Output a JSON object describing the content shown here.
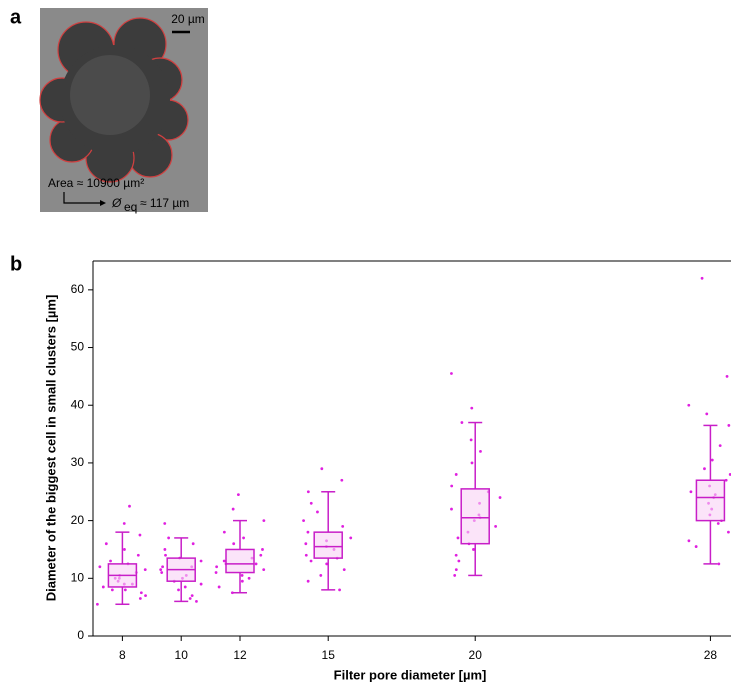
{
  "panel_a": {
    "label": "a",
    "scale_bar": "20 µm",
    "area": "Area ≈ 10900 µm²",
    "diameter_symbol": "Ø",
    "diameter_subscript": "eq",
    "diameter_value": "≈ 117 µm"
  },
  "chart_data": {
    "type": "box",
    "panel_label": "b",
    "x_label": "Filter pore diameter [µm]",
    "y_label": "Diameter of the biggest cell in small clusters  [µm]",
    "x": [
      8,
      10,
      12,
      15,
      20,
      28
    ],
    "xlim": [
      7,
      28.7
    ],
    "xticks": [
      8,
      10,
      12,
      15,
      20,
      28
    ],
    "ylim": [
      0,
      65
    ],
    "yticks": [
      0,
      10,
      20,
      30,
      40,
      50,
      60
    ],
    "color": "#e020e0",
    "box_fill": "#f9d2f5",
    "box_stroke": "#c81ec8",
    "boxes": [
      {
        "whisker_low": 5.5,
        "q1": 8.5,
        "median": 10.5,
        "q3": 12.5,
        "whisker_high": 18
      },
      {
        "whisker_low": 6,
        "q1": 9.5,
        "median": 11.5,
        "q3": 13.5,
        "whisker_high": 17
      },
      {
        "whisker_low": 7.5,
        "q1": 11,
        "median": 12.5,
        "q3": 15,
        "whisker_high": 20
      },
      {
        "whisker_low": 8,
        "q1": 13.5,
        "median": 15.5,
        "q3": 18,
        "whisker_high": 25
      },
      {
        "whisker_low": 10.5,
        "q1": 16,
        "median": 20.5,
        "q3": 25.5,
        "whisker_high": 37
      },
      {
        "whisker_low": 12.5,
        "q1": 20,
        "median": 24,
        "q3": 27,
        "whisker_high": 36.5
      }
    ],
    "points": [
      [
        5.5,
        6.5,
        7,
        7.5,
        8,
        8,
        8.5,
        9,
        9,
        9.5,
        10,
        10,
        10.5,
        11,
        11.5,
        12,
        12.5,
        13,
        14,
        15,
        16,
        17.5,
        19.5,
        22.5
      ],
      [
        6,
        6.5,
        7,
        8,
        8.5,
        9,
        9.5,
        10,
        10.5,
        11,
        11.5,
        12,
        12,
        13,
        13.5,
        14,
        15,
        16,
        17,
        19.5
      ],
      [
        7.5,
        8.5,
        9.5,
        10,
        10.5,
        11,
        11.5,
        12,
        12.5,
        12.5,
        13,
        13.5,
        14,
        15,
        16,
        17,
        18,
        20,
        22,
        24.5
      ],
      [
        8,
        9.5,
        10.5,
        11.5,
        12.5,
        13,
        13.5,
        14,
        15,
        15.5,
        16,
        16.5,
        17,
        18,
        19,
        20,
        21.5,
        23,
        25,
        27,
        29
      ],
      [
        10.5,
        11.5,
        13,
        14,
        15,
        16,
        17,
        18,
        19,
        20,
        20.5,
        21,
        22,
        23,
        24,
        25,
        26,
        28,
        30,
        32,
        34,
        37,
        39.5,
        45.5
      ],
      [
        12.5,
        15.5,
        16.5,
        18,
        19.5,
        20,
        21,
        22,
        23,
        24,
        24.5,
        25,
        26,
        27,
        28,
        29,
        30.5,
        33,
        36.5,
        38.5,
        40,
        45,
        62
      ]
    ]
  }
}
